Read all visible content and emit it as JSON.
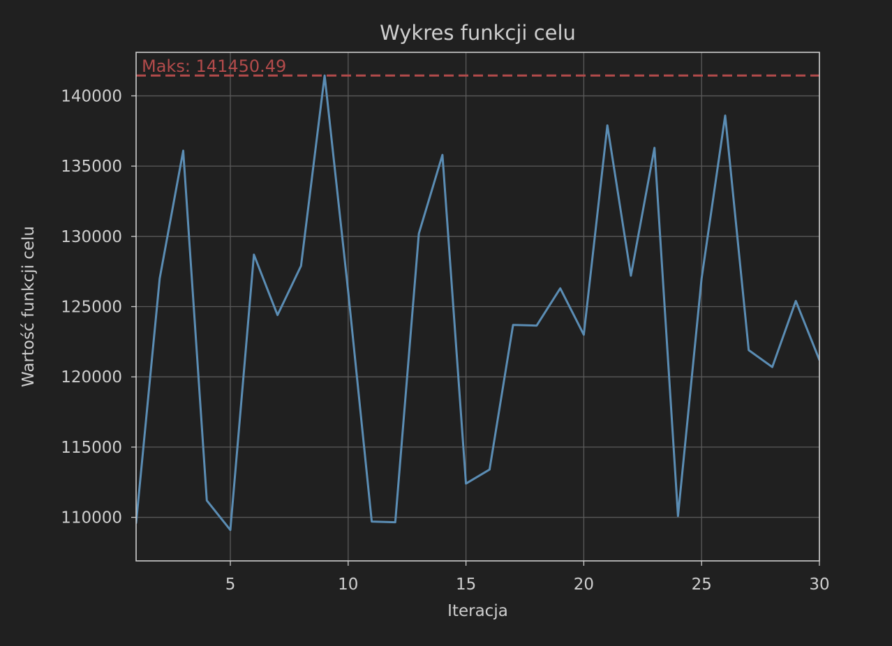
{
  "colors": {
    "background": "#202020",
    "axes_bg": "#202020",
    "frame": "#cfcfcf",
    "grid": "#5a5a5a",
    "text": "#cfcfcf",
    "line": "#5b8db4",
    "max_line": "#b34b4b"
  },
  "chart_data": {
    "type": "line",
    "title": "Wykres funkcji celu",
    "xlabel": "Iteracja",
    "ylabel": "Wartość funkcji celu",
    "xlim": [
      1,
      30
    ],
    "ylim": [
      106900,
      143100
    ],
    "grid": true,
    "x_ticks": [
      5,
      10,
      15,
      20,
      25,
      30
    ],
    "y_ticks": [
      110000,
      115000,
      120000,
      125000,
      130000,
      135000,
      140000
    ],
    "x": [
      1,
      2,
      3,
      4,
      5,
      6,
      7,
      8,
      9,
      10,
      11,
      12,
      13,
      14,
      15,
      16,
      17,
      18,
      19,
      20,
      21,
      22,
      23,
      24,
      25,
      26,
      27,
      28,
      29,
      30
    ],
    "series": [
      {
        "values": [
          109600,
          127000,
          136100,
          111200,
          109100,
          128700,
          124400,
          127900,
          141450,
          126100,
          109700,
          109650,
          130200,
          135800,
          112400,
          113400,
          123700,
          123650,
          126300,
          123000,
          137900,
          127200,
          136300,
          110100,
          127000,
          138600,
          121900,
          120700,
          125400,
          121200
        ]
      }
    ],
    "annotation": {
      "label": "Maks: 141450.49",
      "y": 141450.49,
      "style": "dashed"
    }
  }
}
